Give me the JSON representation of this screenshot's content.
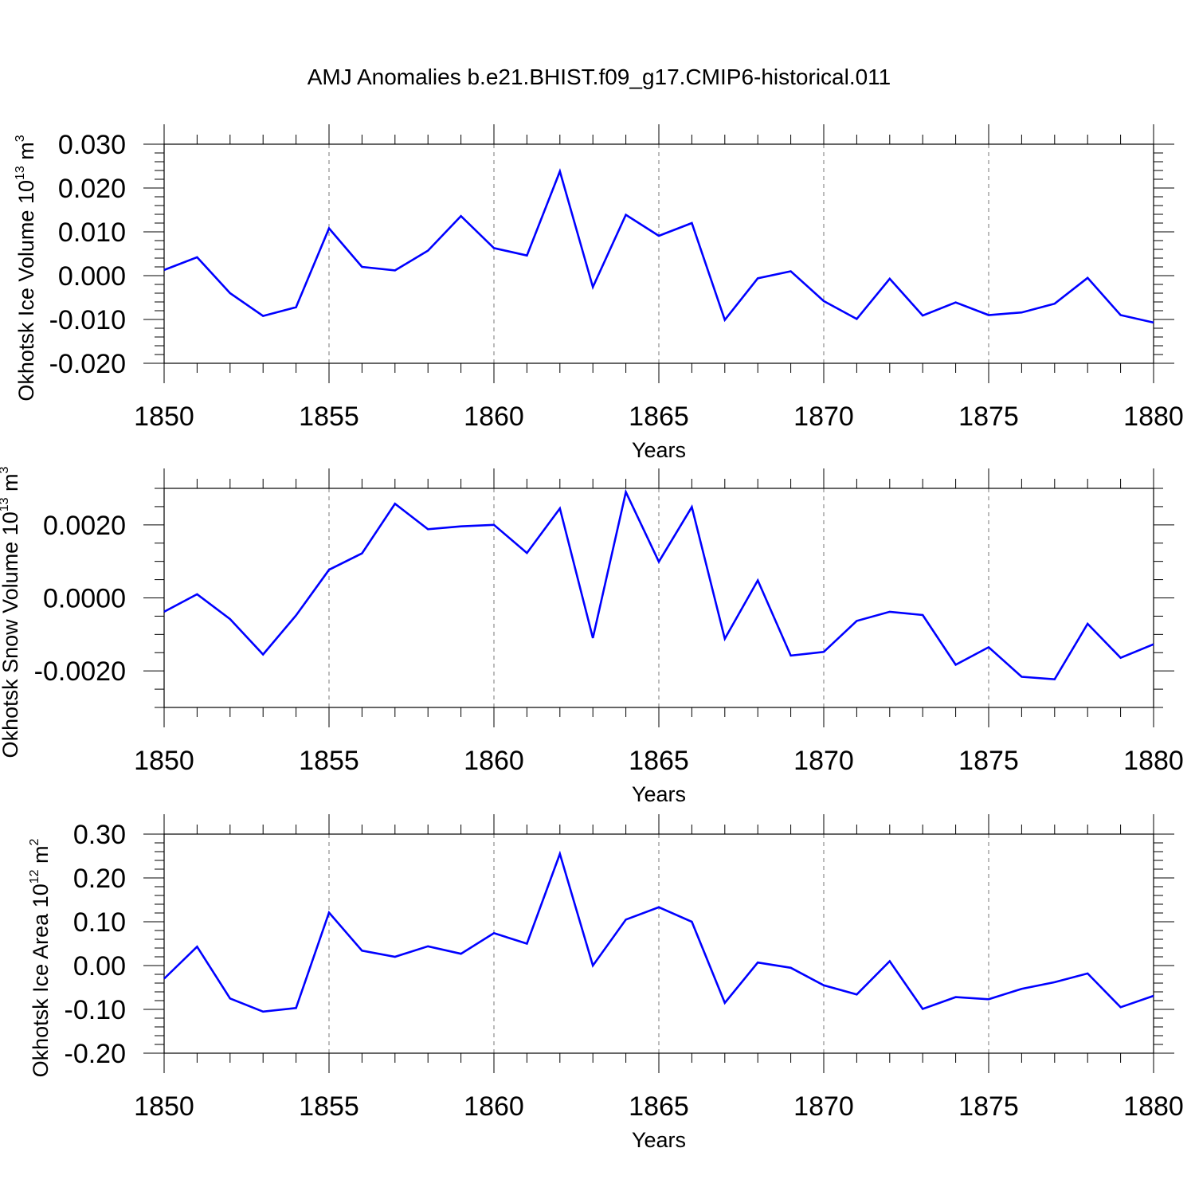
{
  "title": "AMJ Anomalies b.e21.BHIST.f09_g17.CMIP6-historical.011",
  "series_color": "#0000ff",
  "chart_data": [
    {
      "type": "line",
      "ylabel": {
        "prefix": "Okhotsk Ice Volume 10",
        "exp": "13",
        "unit": " m",
        "unit_exp": "3"
      },
      "xlabel": "Years",
      "xlim": [
        1850,
        1880
      ],
      "xticks": [
        1850,
        1855,
        1860,
        1865,
        1870,
        1875,
        1880
      ],
      "ylim": [
        -0.02,
        0.03
      ],
      "yticks": [
        -0.02,
        -0.01,
        0.0,
        0.01,
        0.02,
        0.03
      ],
      "ytick_labels": [
        "-0.020",
        "-0.010",
        "0.000",
        "0.010",
        "0.020",
        "0.030"
      ],
      "y_minor_step": 0.002,
      "x": [
        1850,
        1851,
        1852,
        1853,
        1854,
        1855,
        1856,
        1857,
        1858,
        1859,
        1860,
        1861,
        1862,
        1863,
        1864,
        1865,
        1866,
        1867,
        1868,
        1869,
        1870,
        1871,
        1872,
        1873,
        1874,
        1875,
        1876,
        1877,
        1878,
        1879,
        1880
      ],
      "values": [
        0.0013,
        0.0042,
        -0.004,
        -0.0092,
        -0.0072,
        0.0108,
        0.002,
        0.0012,
        0.0057,
        0.0136,
        0.0063,
        0.0046,
        0.0238,
        -0.0026,
        0.0139,
        0.0091,
        0.012,
        -0.0101,
        -0.0006,
        0.001,
        -0.0058,
        -0.0099,
        -0.0007,
        -0.0091,
        -0.0061,
        -0.009,
        -0.0084,
        -0.0064,
        -0.0005,
        -0.009,
        -0.0107
      ]
    },
    {
      "type": "line",
      "ylabel": {
        "prefix": "Okhotsk Snow Volume 10",
        "exp": "13",
        "unit": " m",
        "unit_exp": "3"
      },
      "xlabel": "Years",
      "xlim": [
        1850,
        1880
      ],
      "xticks": [
        1850,
        1855,
        1860,
        1865,
        1870,
        1875,
        1880
      ],
      "ylim": [
        -0.003,
        0.003
      ],
      "yticks": [
        -0.002,
        0.0,
        0.002
      ],
      "ytick_labels": [
        "-0.0020",
        "0.0000",
        "0.0020"
      ],
      "y_minor_step": 0.0005,
      "x": [
        1850,
        1851,
        1852,
        1853,
        1854,
        1855,
        1856,
        1857,
        1858,
        1859,
        1860,
        1861,
        1862,
        1863,
        1864,
        1865,
        1866,
        1867,
        1868,
        1869,
        1870,
        1871,
        1872,
        1873,
        1874,
        1875,
        1876,
        1877,
        1878,
        1879,
        1880
      ],
      "values": [
        -0.00038,
        0.0001,
        -0.00058,
        -0.00155,
        -0.00048,
        0.00077,
        0.00122,
        0.00258,
        0.00188,
        0.00196,
        0.002,
        0.00123,
        0.00245,
        -0.0011,
        0.0029,
        0.00099,
        0.00249,
        -0.00112,
        0.00048,
        -0.00158,
        -0.00148,
        -0.00063,
        -0.00038,
        -0.00047,
        -0.00183,
        -0.00135,
        -0.00216,
        -0.00223,
        -0.00071,
        -0.00164,
        -0.00127
      ]
    },
    {
      "type": "line",
      "ylabel": {
        "prefix": "Okhotsk Ice Area 10",
        "exp": "12",
        "unit": " m",
        "unit_exp": "2"
      },
      "xlabel": "Years",
      "xlim": [
        1850,
        1880
      ],
      "xticks": [
        1850,
        1855,
        1860,
        1865,
        1870,
        1875,
        1880
      ],
      "ylim": [
        -0.2,
        0.3
      ],
      "yticks": [
        -0.2,
        -0.1,
        0.0,
        0.1,
        0.2,
        0.3
      ],
      "ytick_labels": [
        "-0.20",
        "-0.10",
        "0.00",
        "0.10",
        "0.20",
        "0.30"
      ],
      "y_minor_step": 0.02,
      "x": [
        1850,
        1851,
        1852,
        1853,
        1854,
        1855,
        1856,
        1857,
        1858,
        1859,
        1860,
        1861,
        1862,
        1863,
        1864,
        1865,
        1866,
        1867,
        1868,
        1869,
        1870,
        1871,
        1872,
        1873,
        1874,
        1875,
        1876,
        1877,
        1878,
        1879,
        1880
      ],
      "values": [
        -0.03,
        0.043,
        -0.075,
        -0.105,
        -0.097,
        0.121,
        0.034,
        0.02,
        0.044,
        0.027,
        0.074,
        0.05,
        0.255,
        0.0,
        0.105,
        0.133,
        0.1,
        -0.085,
        0.007,
        -0.005,
        -0.045,
        -0.066,
        0.01,
        -0.099,
        -0.072,
        -0.077,
        -0.053,
        -0.038,
        -0.018,
        -0.095,
        -0.069
      ]
    }
  ]
}
